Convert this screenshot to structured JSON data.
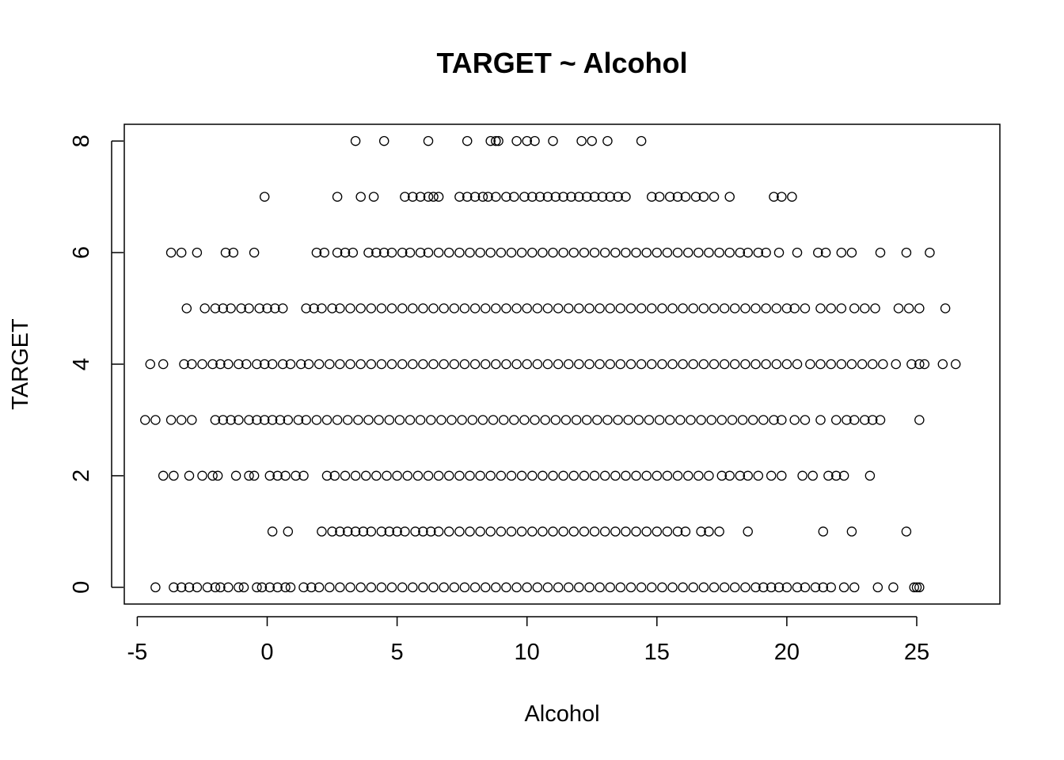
{
  "chart_data": {
    "type": "scatter",
    "title": "TARGET ~ Alcohol",
    "xlabel": "Alcohol",
    "ylabel": "TARGET",
    "xlim": [
      -5.5,
      28.2
    ],
    "ylim": [
      -0.3,
      8.3
    ],
    "xticks": [
      -5,
      0,
      5,
      10,
      15,
      20,
      25
    ],
    "yticks": [
      0,
      2,
      4,
      6,
      8
    ],
    "grid": false,
    "marker": "open-circle",
    "rows": [
      {
        "y": 8,
        "points": [
          3.4,
          4.5,
          6.2,
          7.7,
          8.6,
          8.8,
          8.9,
          9.6,
          10.0,
          10.3,
          11.0,
          12.1,
          12.5,
          13.1,
          14.4
        ]
      },
      {
        "y": 7,
        "points": [
          -0.1,
          2.7,
          3.6,
          4.1,
          5.3,
          5.6,
          5.9,
          6.2,
          6.4,
          6.6,
          7.4,
          7.7,
          8.0,
          8.3,
          8.5,
          8.8,
          9.2,
          9.5,
          9.9,
          10.2,
          10.5,
          10.8,
          11.1,
          11.4,
          11.7,
          12.0,
          12.3,
          12.6,
          12.9,
          13.2,
          13.5,
          13.8,
          14.8,
          15.1,
          15.5,
          15.8,
          16.1,
          16.5,
          16.8,
          17.2,
          17.8,
          19.5,
          19.8,
          20.2
        ]
      },
      {
        "y": 6,
        "points": [
          -3.7,
          -3.3,
          -2.7,
          -1.6,
          -1.3,
          -0.5,
          1.9,
          2.2,
          2.7,
          3.0,
          3.3,
          3.9,
          4.2,
          4.5,
          4.8,
          5.2,
          5.5,
          5.9,
          6.2,
          6.6,
          7.0,
          7.4,
          7.8,
          8.2,
          8.6,
          9.0,
          9.4,
          9.8,
          10.2,
          10.6,
          11.0,
          11.4,
          11.8,
          12.2,
          12.6,
          13.0,
          13.4,
          13.8,
          14.2,
          14.6,
          15.0,
          15.4,
          15.8,
          16.2,
          16.6,
          17.0,
          17.4,
          17.8,
          18.2,
          18.5,
          18.9,
          19.2,
          19.7,
          20.4,
          21.2,
          21.5,
          22.1,
          22.5,
          23.6,
          24.6,
          25.5
        ]
      },
      {
        "y": 5,
        "points": [
          -3.1,
          -2.4,
          -2.0,
          -1.7,
          -1.4,
          -1.0,
          -0.7,
          -0.3,
          0.0,
          0.3,
          0.6,
          1.5,
          1.8,
          2.1,
          2.5,
          2.8,
          3.2,
          3.6,
          4.0,
          4.4,
          4.8,
          5.2,
          5.6,
          6.0,
          6.4,
          6.8,
          7.2,
          7.6,
          8.0,
          8.4,
          8.8,
          9.2,
          9.6,
          10.0,
          10.4,
          10.8,
          11.2,
          11.6,
          12.0,
          12.4,
          12.8,
          13.2,
          13.6,
          14.0,
          14.4,
          14.8,
          15.2,
          15.6,
          16.0,
          16.4,
          16.8,
          17.2,
          17.6,
          18.0,
          18.4,
          18.8,
          19.2,
          19.6,
          20.0,
          20.3,
          20.7,
          21.3,
          21.7,
          22.1,
          22.6,
          23.0,
          23.4,
          24.3,
          24.7,
          25.1,
          26.1
        ]
      },
      {
        "y": 4,
        "points": [
          -4.5,
          -4.0,
          -3.2,
          -2.9,
          -2.5,
          -2.1,
          -1.8,
          -1.5,
          -1.1,
          -0.8,
          -0.4,
          -0.1,
          0.2,
          0.6,
          0.9,
          1.3,
          1.6,
          2.0,
          2.4,
          2.8,
          3.2,
          3.6,
          4.0,
          4.4,
          4.8,
          5.2,
          5.6,
          6.0,
          6.4,
          6.8,
          7.2,
          7.6,
          8.0,
          8.4,
          8.8,
          9.2,
          9.6,
          10.0,
          10.4,
          10.8,
          11.2,
          11.6,
          12.0,
          12.4,
          12.8,
          13.2,
          13.6,
          14.0,
          14.4,
          14.8,
          15.2,
          15.6,
          16.0,
          16.4,
          16.8,
          17.2,
          17.6,
          18.0,
          18.4,
          18.8,
          19.2,
          19.6,
          20.0,
          20.4,
          20.9,
          21.3,
          21.7,
          22.1,
          22.5,
          22.9,
          23.3,
          23.7,
          24.2,
          24.8,
          25.1,
          25.3,
          26.0,
          26.5
        ]
      },
      {
        "y": 3,
        "points": [
          -4.7,
          -4.3,
          -3.7,
          -3.3,
          -2.9,
          -2.0,
          -1.7,
          -1.4,
          -1.1,
          -0.7,
          -0.4,
          -0.1,
          0.2,
          0.5,
          0.8,
          1.2,
          1.5,
          1.9,
          2.3,
          2.7,
          3.1,
          3.5,
          3.9,
          4.3,
          4.7,
          5.1,
          5.5,
          5.9,
          6.3,
          6.7,
          7.1,
          7.5,
          7.9,
          8.3,
          8.7,
          9.1,
          9.5,
          9.9,
          10.3,
          10.7,
          11.1,
          11.5,
          11.9,
          12.3,
          12.7,
          13.1,
          13.5,
          13.9,
          14.3,
          14.7,
          15.1,
          15.5,
          15.9,
          16.3,
          16.7,
          17.1,
          17.5,
          17.9,
          18.3,
          18.7,
          19.1,
          19.5,
          19.8,
          20.3,
          20.7,
          21.3,
          21.9,
          22.3,
          22.6,
          23.0,
          23.3,
          23.6,
          25.1
        ]
      },
      {
        "y": 2,
        "points": [
          -4.0,
          -3.6,
          -3.0,
          -2.5,
          -2.1,
          -1.9,
          -1.2,
          -0.7,
          -0.5,
          0.1,
          0.4,
          0.7,
          1.1,
          1.4,
          2.3,
          2.6,
          3.0,
          3.4,
          3.8,
          4.2,
          4.6,
          5.0,
          5.4,
          5.8,
          6.2,
          6.6,
          7.0,
          7.4,
          7.8,
          8.2,
          8.6,
          9.0,
          9.4,
          9.8,
          10.2,
          10.6,
          11.0,
          11.4,
          11.8,
          12.2,
          12.6,
          13.0,
          13.4,
          13.8,
          14.2,
          14.6,
          15.0,
          15.4,
          15.8,
          16.2,
          16.6,
          17.0,
          17.5,
          17.8,
          18.2,
          18.5,
          18.9,
          19.4,
          19.8,
          20.6,
          21.0,
          21.6,
          21.9,
          22.2,
          23.2
        ]
      },
      {
        "y": 1,
        "points": [
          0.2,
          0.8,
          2.1,
          2.5,
          2.8,
          3.1,
          3.4,
          3.7,
          4.0,
          4.4,
          4.7,
          5.0,
          5.3,
          5.7,
          6.0,
          6.3,
          6.6,
          7.0,
          7.4,
          7.8,
          8.2,
          8.6,
          9.0,
          9.4,
          9.8,
          10.2,
          10.6,
          11.0,
          11.4,
          11.8,
          12.2,
          12.6,
          13.0,
          13.4,
          13.8,
          14.2,
          14.6,
          15.0,
          15.4,
          15.8,
          16.1,
          16.7,
          17.0,
          17.4,
          18.5,
          21.4,
          22.5,
          24.6
        ]
      },
      {
        "y": 0,
        "points": [
          -4.3,
          -3.6,
          -3.3,
          -3.0,
          -2.7,
          -2.3,
          -2.0,
          -1.8,
          -1.5,
          -1.1,
          -0.9,
          -0.4,
          -0.2,
          0.1,
          0.4,
          0.7,
          0.9,
          1.4,
          1.7,
          2.0,
          2.4,
          2.8,
          3.2,
          3.6,
          4.0,
          4.4,
          4.8,
          5.2,
          5.6,
          6.0,
          6.4,
          6.8,
          7.2,
          7.6,
          8.0,
          8.4,
          8.8,
          9.2,
          9.6,
          10.0,
          10.4,
          10.8,
          11.2,
          11.6,
          12.0,
          12.4,
          12.8,
          13.2,
          13.6,
          14.0,
          14.4,
          14.8,
          15.2,
          15.6,
          16.0,
          16.4,
          16.8,
          17.2,
          17.6,
          18.0,
          18.4,
          18.8,
          19.1,
          19.4,
          19.7,
          20.0,
          20.4,
          20.7,
          21.1,
          21.4,
          21.7,
          22.2,
          22.6,
          23.5,
          24.1,
          24.9,
          25.0,
          25.1
        ]
      }
    ]
  }
}
